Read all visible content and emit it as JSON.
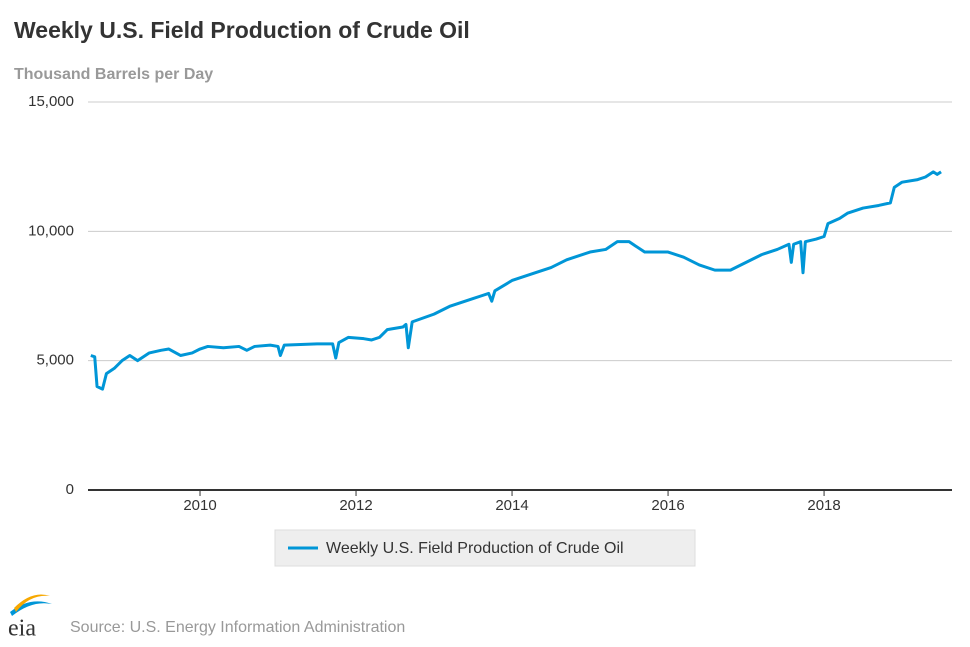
{
  "chart_data": {
    "type": "line",
    "title": "Weekly U.S. Field Production of Crude Oil",
    "subtitle": "Thousand Barrels per Day",
    "source": "Source: U.S. Energy Information Administration",
    "logo": "eia",
    "xlim": [
      2008.564,
      2019.64
    ],
    "xticks": [
      2010,
      2012,
      2014,
      2016,
      2018
    ],
    "ylim": [
      0,
      15000
    ],
    "yticks": [
      0,
      {
        "value": 5000,
        "label": "5,000"
      },
      {
        "value": 10000,
        "label": "10,000"
      },
      {
        "value": 15000,
        "label": "15,000"
      }
    ],
    "grid": true,
    "legend": "bottom",
    "x": [
      2008.6,
      2008.65,
      2008.68,
      2008.75,
      2008.8,
      2008.9,
      2009.0,
      2009.1,
      2009.2,
      2009.35,
      2009.5,
      2009.6,
      2009.75,
      2009.9,
      2010.0,
      2010.1,
      2010.3,
      2010.5,
      2010.6,
      2010.7,
      2010.9,
      2011.0,
      2011.03,
      2011.08,
      2011.5,
      2011.7,
      2011.74,
      2011.78,
      2011.9,
      2012.1,
      2012.2,
      2012.3,
      2012.4,
      2012.6,
      2012.64,
      2012.67,
      2012.72,
      2013.0,
      2013.2,
      2013.5,
      2013.6,
      2013.7,
      2013.74,
      2013.78,
      2014.0,
      2014.3,
      2014.5,
      2014.7,
      2015.0,
      2015.2,
      2015.35,
      2015.5,
      2015.7,
      2015.9,
      2016.0,
      2016.2,
      2016.4,
      2016.6,
      2016.8,
      2017.0,
      2017.2,
      2017.4,
      2017.55,
      2017.58,
      2017.61,
      2017.7,
      2017.73,
      2017.76,
      2017.9,
      2018.0,
      2018.05,
      2018.2,
      2018.3,
      2018.5,
      2018.7,
      2018.85,
      2018.9,
      2019.0,
      2019.2,
      2019.3,
      2019.4,
      2019.45,
      2019.5
    ],
    "series": [
      {
        "name": "Weekly U.S. Field Production of Crude Oil",
        "color": "#0096d7",
        "values": [
          5200,
          5150,
          4000,
          3900,
          4500,
          4700,
          5000,
          5200,
          5000,
          5300,
          5400,
          5450,
          5200,
          5300,
          5450,
          5550,
          5500,
          5550,
          5400,
          5550,
          5600,
          5550,
          5200,
          5600,
          5650,
          5650,
          5100,
          5700,
          5900,
          5850,
          5800,
          5900,
          6200,
          6300,
          6400,
          5500,
          6500,
          6800,
          7100,
          7400,
          7500,
          7600,
          7300,
          7700,
          8100,
          8400,
          8600,
          8900,
          9200,
          9300,
          9600,
          9600,
          9200,
          9200,
          9200,
          9000,
          8700,
          8500,
          8500,
          8800,
          9100,
          9300,
          9500,
          8800,
          9500,
          9600,
          8400,
          9600,
          9700,
          9800,
          10300,
          10500,
          10700,
          10900,
          11000,
          11100,
          11700,
          11900,
          12000,
          12100,
          12300,
          12200,
          12300
        ]
      }
    ]
  }
}
